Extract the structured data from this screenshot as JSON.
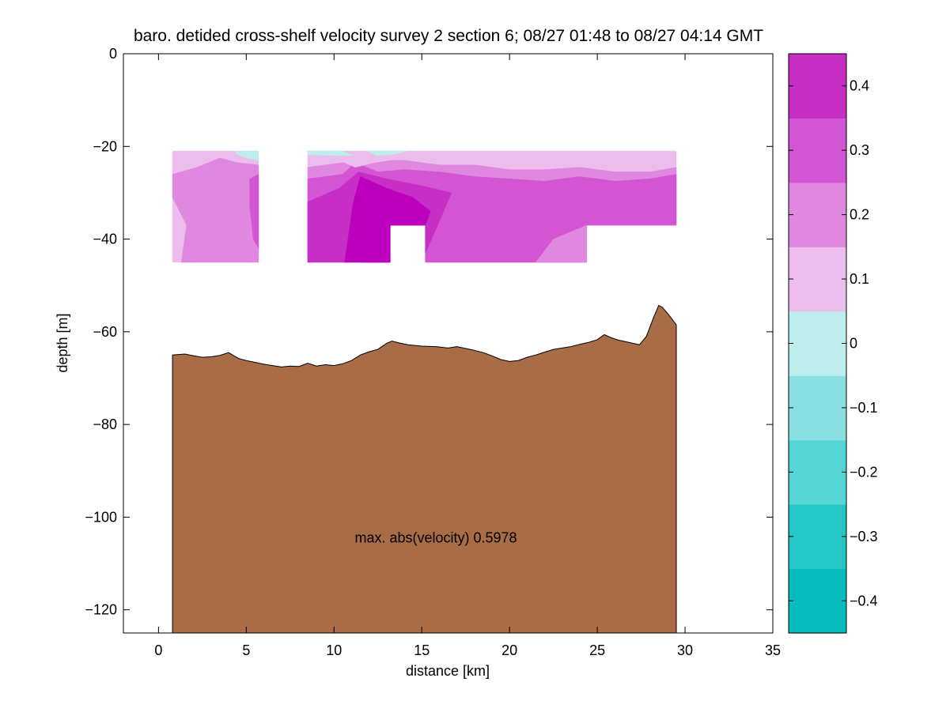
{
  "chart_data": {
    "type": "contour",
    "title": "baro. detided cross-shelf velocity survey 2 section 6; 08/27 01:48 to 08/27 04:14 GMT",
    "xlabel": "distance [km]",
    "ylabel": "depth [m]",
    "xlim": [
      -2,
      35
    ],
    "ylim": [
      -125,
      0
    ],
    "xticks": [
      0,
      5,
      10,
      15,
      20,
      25,
      30,
      35
    ],
    "yticks": [
      0,
      -20,
      -40,
      -60,
      -80,
      -100,
      -120
    ],
    "xtick_labels": [
      "0",
      "5",
      "10",
      "15",
      "20",
      "25",
      "30",
      "35"
    ],
    "ytick_labels": [
      "0",
      "−20",
      "−40",
      "−60",
      "−80",
      "−100",
      "−120"
    ],
    "annotation": {
      "text": "max. abs(velocity) 0.5978",
      "x": 15.8,
      "y": -105.5
    },
    "colorbar": {
      "range": [
        -0.45,
        0.45
      ],
      "level_edges": [
        -0.45,
        -0.35,
        -0.25,
        -0.15,
        -0.05,
        0.05,
        0.15,
        0.25,
        0.35,
        0.45
      ],
      "colors": [
        "#06bdbd",
        "#25c6c6",
        "#55d5d5",
        "#8ae0e0",
        "#bdeded",
        "#ecbdec",
        "#e087e0",
        "#d455d4",
        "#c62ec6",
        "#bd00bd"
      ],
      "ticks": [
        0.4,
        0.3,
        0.2,
        0.1,
        0,
        -0.1,
        -0.2,
        -0.3,
        -0.4
      ],
      "tick_labels": [
        "0.4",
        "0.3",
        "0.2",
        "0.1",
        "0",
        "−0.1",
        "−0.2",
        "−0.3",
        "−0.4"
      ]
    },
    "velocity_sections": [
      {
        "x_range": [
          0.8,
          5.7
        ],
        "depth_range": [
          -21,
          -45
        ],
        "bands": [
          {
            "level": 0.1,
            "points": [
              [
                0.8,
                -21
              ],
              [
                5.7,
                -21
              ],
              [
                5.7,
                -45
              ],
              [
                0.8,
                -45
              ]
            ]
          },
          {
            "level": 0.0,
            "points": [
              [
                4.4,
                -21
              ],
              [
                5.7,
                -21
              ],
              [
                5.7,
                -23
              ],
              [
                5.0,
                -22.5
              ],
              [
                4.4,
                -21.5
              ]
            ]
          },
          {
            "level": 0.2,
            "points": [
              [
                0.8,
                -26
              ],
              [
                2.2,
                -24.5
              ],
              [
                3.5,
                -22.5
              ],
              [
                4.5,
                -23.5
              ],
              [
                5.7,
                -24
              ],
              [
                5.7,
                -45
              ],
              [
                1.3,
                -45
              ],
              [
                1.6,
                -37
              ],
              [
                0.8,
                -31
              ]
            ]
          },
          {
            "level": 0.3,
            "points": [
              [
                5.2,
                -27
              ],
              [
                5.7,
                -26
              ],
              [
                5.7,
                -42
              ],
              [
                5.4,
                -40
              ],
              [
                5.2,
                -33
              ]
            ]
          }
        ]
      },
      {
        "x_range": [
          8.5,
          29.5
        ],
        "depth_range": [
          -21,
          -45
        ],
        "gap": {
          "x_range": [
            13.2,
            15.2
          ],
          "depth_range": [
            -37,
            -45
          ]
        },
        "right_step": {
          "x_range": [
            24.4,
            29.5
          ],
          "depth_range": [
            -37,
            -45
          ]
        },
        "bands": [
          {
            "level": 0.1,
            "points": [
              [
                8.5,
                -21
              ],
              [
                29.5,
                -21
              ],
              [
                29.5,
                -37
              ],
              [
                24.4,
                -37
              ],
              [
                24.4,
                -45
              ],
              [
                15.2,
                -45
              ],
              [
                15.2,
                -37
              ],
              [
                13.2,
                -37
              ],
              [
                13.2,
                -45
              ],
              [
                8.5,
                -45
              ]
            ]
          },
          {
            "level": 0.2,
            "points": [
              [
                8.5,
                -24.5
              ],
              [
                10.5,
                -23.5
              ],
              [
                11.2,
                -22
              ],
              [
                12.2,
                -23
              ],
              [
                14,
                -23
              ],
              [
                16,
                -24
              ],
              [
                18,
                -24
              ],
              [
                20,
                -25
              ],
              [
                22,
                -25
              ],
              [
                24,
                -24.5
              ],
              [
                26,
                -25.5
              ],
              [
                28,
                -25.5
              ],
              [
                29.5,
                -24.5
              ],
              [
                29.5,
                -37
              ],
              [
                24.4,
                -37
              ],
              [
                24.4,
                -45
              ],
              [
                15.2,
                -45
              ],
              [
                15.2,
                -37
              ],
              [
                13.2,
                -37
              ],
              [
                13.2,
                -45
              ],
              [
                8.5,
                -45
              ]
            ]
          },
          {
            "level": 0.3,
            "points": [
              [
                8.5,
                -27
              ],
              [
                10.5,
                -26
              ],
              [
                11.2,
                -23.5
              ],
              [
                12.5,
                -25.5
              ],
              [
                14,
                -25
              ],
              [
                16,
                -25.5
              ],
              [
                18,
                -26.5
              ],
              [
                20,
                -27
              ],
              [
                22,
                -27.5
              ],
              [
                24,
                -26.5
              ],
              [
                26,
                -27.5
              ],
              [
                28,
                -27
              ],
              [
                29.5,
                -26
              ],
              [
                29.5,
                -37
              ],
              [
                24.4,
                -37
              ],
              [
                24.4,
                -45
              ],
              [
                15.2,
                -45
              ],
              [
                15.2,
                -37
              ],
              [
                13.2,
                -37
              ],
              [
                13.2,
                -45
              ],
              [
                8.5,
                -45
              ]
            ]
          },
          {
            "level": 0.4,
            "points": [
              [
                8.5,
                -32
              ],
              [
                10.3,
                -29
              ],
              [
                11.4,
                -25.5
              ],
              [
                13,
                -27
              ],
              [
                15,
                -28.5
              ],
              [
                16.7,
                -30
              ],
              [
                15.9,
                -37
              ],
              [
                15.2,
                -43
              ],
              [
                15.2,
                -37
              ],
              [
                13.2,
                -37
              ],
              [
                13.2,
                -45
              ],
              [
                8.5,
                -45
              ]
            ]
          },
          {
            "level": 0.5,
            "points": [
              [
                10.6,
                -45
              ],
              [
                11.1,
                -32
              ],
              [
                11.5,
                -26.5
              ],
              [
                13,
                -29
              ],
              [
                14.5,
                -31
              ],
              [
                15.5,
                -34
              ],
              [
                15.2,
                -37
              ],
              [
                13.2,
                -37
              ],
              [
                13.2,
                -45
              ]
            ]
          },
          {
            "level": 0.6,
            "points": [
              [
                11.6,
                -45
              ],
              [
                11.8,
                -32
              ],
              [
                12.3,
                -29
              ],
              [
                13.8,
                -32
              ],
              [
                15,
                -34.5
              ],
              [
                15.2,
                -37
              ],
              [
                13.2,
                -37
              ],
              [
                13.2,
                -45
              ]
            ]
          },
          {
            "level": 0.05,
            "points": [
              [
                8.5,
                -21
              ],
              [
                11.0,
                -21
              ],
              [
                11.3,
                -22
              ],
              [
                11.8,
                -21
              ],
              [
                14.5,
                -21
              ],
              [
                16,
                -21.5
              ],
              [
                14,
                -22.5
              ],
              [
                12.3,
                -23.5
              ],
              [
                11.2,
                -24.5
              ],
              [
                10.2,
                -22.8
              ],
              [
                8.5,
                -23
              ]
            ]
          },
          {
            "level": -0.05,
            "points": [
              [
                8.5,
                -21
              ],
              [
                10.5,
                -21
              ],
              [
                11.1,
                -22
              ],
              [
                10.5,
                -22
              ],
              [
                8.5,
                -21.8
              ]
            ]
          },
          {
            "level": -0.05,
            "points": [
              [
                11.9,
                -21
              ],
              [
                14.2,
                -21
              ],
              [
                13.4,
                -21.7
              ],
              [
                12.4,
                -22
              ]
            ]
          },
          {
            "level": 0.2,
            "points": [
              [
                22.5,
                -40
              ],
              [
                24.4,
                -37
              ],
              [
                24.4,
                -45
              ],
              [
                21.5,
                -45
              ]
            ]
          }
        ]
      }
    ],
    "bathymetry": {
      "color": "#a86c46",
      "x": [
        0.8,
        1.5,
        2.0,
        2.5,
        3.0,
        3.5,
        4.0,
        4.3,
        4.6,
        5.0,
        5.5,
        6.0,
        6.5,
        7.0,
        7.5,
        8.0,
        8.5,
        9.0,
        9.5,
        10.0,
        10.5,
        11.0,
        11.5,
        12.0,
        12.5,
        13.0,
        13.3,
        13.7,
        14.2,
        15.0,
        15.8,
        16.5,
        17.0,
        17.5,
        18.0,
        18.5,
        19.0,
        19.5,
        20.0,
        20.5,
        21.0,
        21.5,
        22.0,
        22.5,
        23.0,
        23.5,
        24.0,
        24.5,
        25.0,
        25.4,
        25.8,
        26.2,
        26.8,
        27.4,
        27.8,
        28.2,
        28.5,
        28.7,
        29.0,
        29.5
      ],
      "depth": [
        -65,
        -64.8,
        -65.2,
        -65.5,
        -65.4,
        -65.1,
        -64.5,
        -65.2,
        -65.8,
        -66.2,
        -66.6,
        -67.0,
        -67.3,
        -67.6,
        -67.4,
        -67.5,
        -66.8,
        -67.4,
        -67.1,
        -67.3,
        -66.9,
        -66.2,
        -65.0,
        -64.3,
        -63.8,
        -62.5,
        -62.0,
        -62.4,
        -62.8,
        -63.1,
        -63.2,
        -63.5,
        -63.2,
        -63.6,
        -64.0,
        -64.5,
        -65.2,
        -66.0,
        -66.4,
        -66.2,
        -65.5,
        -65.0,
        -64.4,
        -63.8,
        -63.5,
        -63.2,
        -62.7,
        -62.3,
        -61.7,
        -60.6,
        -61.3,
        -61.8,
        -62.3,
        -62.8,
        -61.0,
        -57.0,
        -54.3,
        -54.7,
        -56.0,
        -58.5
      ]
    }
  }
}
